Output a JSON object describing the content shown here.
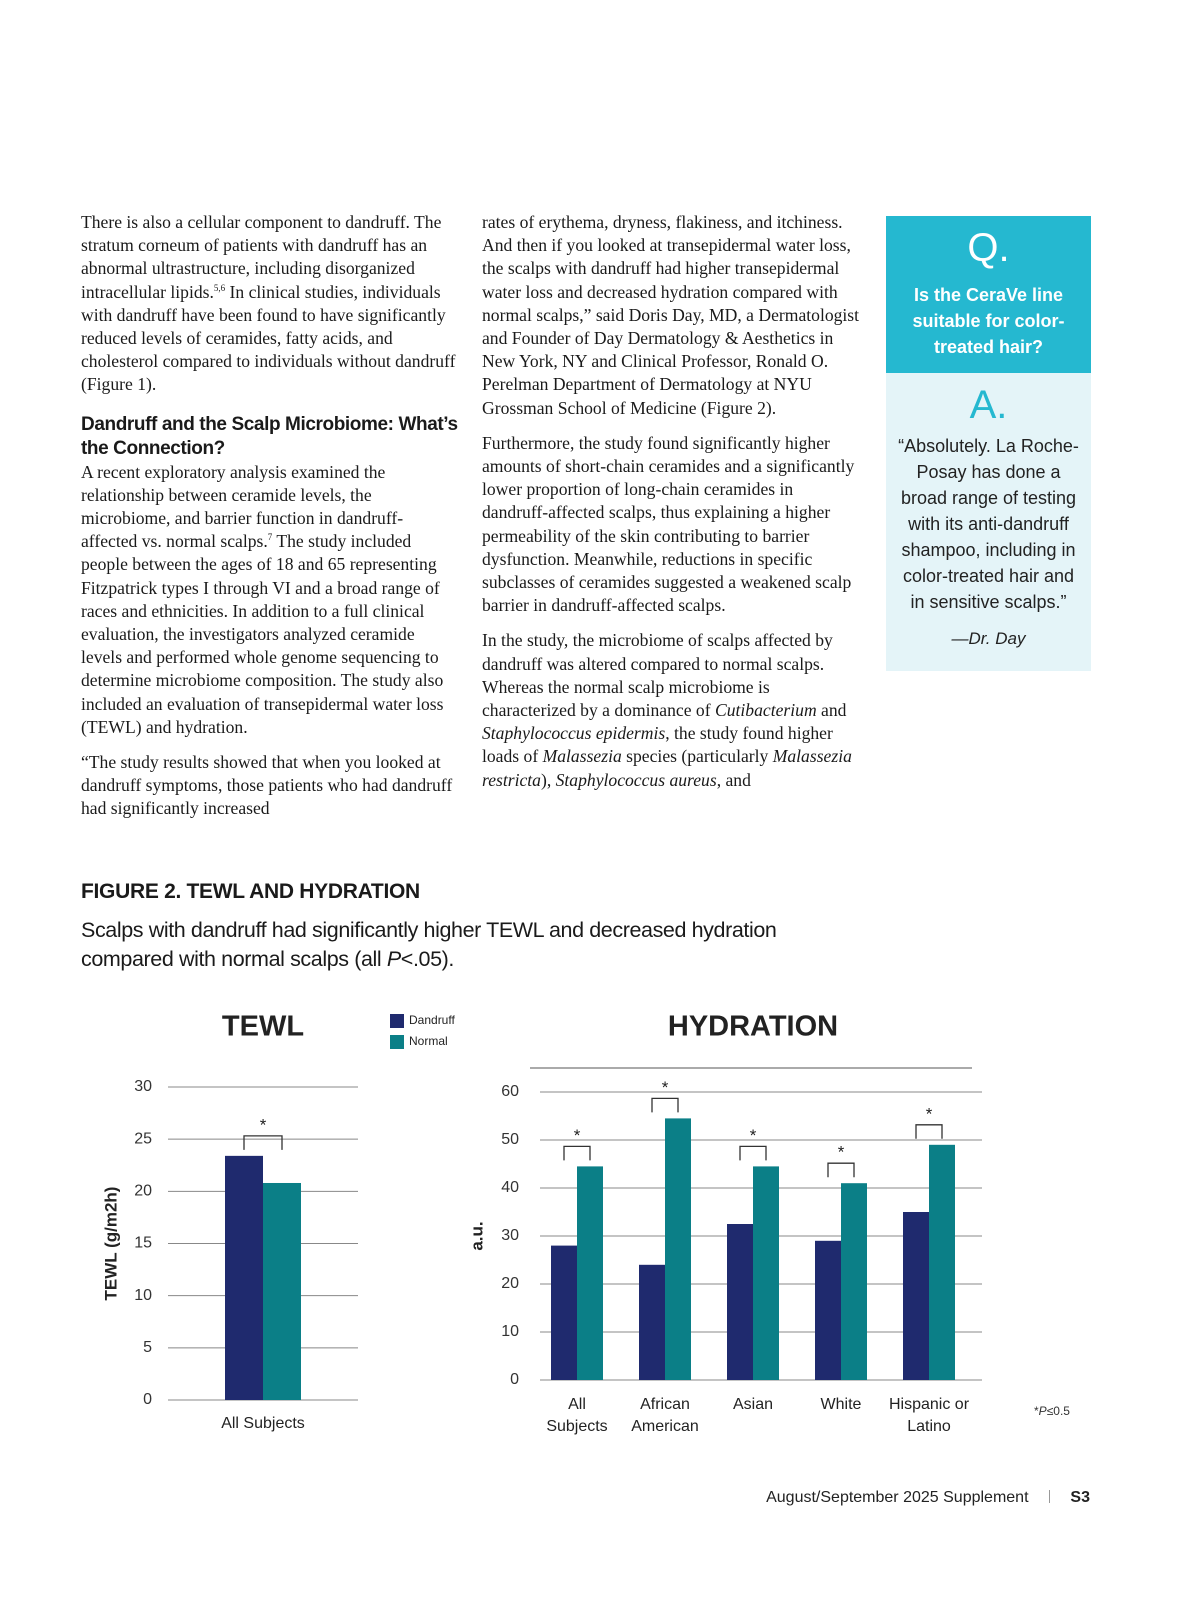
{
  "article": {
    "column1": {
      "p1": [
        "There is also a cellular component to dandruff. The stratum corneum of patients with dandruff has an abnormal ultrastructure, including disorganized intracellular lipids.",
        "5,6",
        " In clinical studies, individuals with dandruff have been found to have significantly reduced levels of ceramides, fatty acids, and cholesterol compared to individuals without dandruff (Figure 1)."
      ],
      "heading": "Dandruff and the Scalp Microbiome: What’s the Connection?",
      "p2": [
        "A recent exploratory analysis examined the relationship between ceramide levels, the microbiome, and barrier function in dandruff-affected vs. normal scalps.",
        "7",
        " The study included people between the ages of 18 and 65 representing Fitzpatrick types I through VI and a broad range of races and ethnicities. In addition to a full clinical evaluation, the investigators analyzed ceramide levels and performed whole genome sequencing to determine microbiome composition. The study also included an evaluation of transepidermal water loss (TEWL) and hydration."
      ],
      "p3": "“The study results showed that when you looked at dandruff symptoms, those patients who had dandruff had significantly increased"
    },
    "column2": {
      "p1": "rates of erythema, dryness, flakiness, and itchiness. And then if you looked at transepidermal water loss, the scalps with dandruff had higher transepidermal water loss and decreased hydration compared with normal scalps,” said Doris Day, MD, a Dermatologist and Founder of Day Dermatology & Aesthetics in New York, NY and Clinical Professor, Ronald O. Perelman Department of Dermatology at NYU Grossman School of Medicine (Figure 2).",
      "p2": "Furthermore, the study found significantly higher amounts of short-chain ceramides and a significantly lower proportion of long-chain ceramides in dandruff-affected scalps, thus explaining a higher permeability of the skin contributing to barrier dysfunction. Meanwhile, reductions in specific subclasses of ceramides suggested a weakened scalp barrier in dandruff-affected scalps.",
      "p3": [
        "In the study, the microbiome of scalps affected by dandruff was altered compared to normal scalps. Whereas the normal scalp microbiome is characterized by a dominance of ",
        "Cutibacterium",
        " and ",
        "Staphylococcus epidermis",
        ", the study found higher loads of ",
        "Malassezia",
        " species (particularly ",
        "Malassezia restricta",
        "), ",
        "Staphylococcus aureus",
        ", and"
      ]
    }
  },
  "sidebar": {
    "q_mark": "Q.",
    "question": "Is the CeraVe line suitable for color-treated hair?",
    "a_mark": "A.",
    "answer": "“Absolutely. La Roche-Posay has done a broad range of testing with its anti-dandruff shampoo, including in color-treated hair and in sensitive scalps.”",
    "attribution": "—Dr. Day"
  },
  "figure": {
    "title": "FIGURE 2. TEWL AND HYDRATION",
    "caption": [
      "Scalps with dandruff had significantly higher TEWL and decreased hydration compared with normal scalps (all ",
      "P",
      "<.05)."
    ],
    "footnote": [
      "*",
      "P",
      "≤0.5"
    ]
  },
  "chart_data": [
    {
      "type": "bar",
      "title": "TEWL",
      "y_label": "TEWL (g/m2h)",
      "categories": [
        "All Subjects"
      ],
      "series": [
        {
          "name": "Dandruff",
          "color": "#1f2a6e",
          "values": [
            23.4
          ]
        },
        {
          "name": "Normal",
          "color": "#0b7f87",
          "values": [
            20.8
          ]
        }
      ],
      "annotations": [
        "*"
      ],
      "ylim": [
        0,
        30
      ],
      "yticks": [
        0,
        5,
        10,
        15,
        20,
        25,
        30
      ],
      "grid": true,
      "legend": "right"
    },
    {
      "type": "bar",
      "title": "HYDRATION",
      "y_label": "a.u.",
      "categories": [
        "All Subjects",
        "African American",
        "Asian",
        "White",
        "Hispanic or Latino"
      ],
      "series": [
        {
          "name": "Dandruff",
          "color": "#1f2a6e",
          "values": [
            28,
            24,
            32.5,
            29,
            35
          ]
        },
        {
          "name": "Normal",
          "color": "#0b7f87",
          "values": [
            44.5,
            54.5,
            44.5,
            41,
            49
          ]
        }
      ],
      "annotations": [
        "*",
        "*",
        "*",
        "*",
        "*"
      ],
      "ylim": [
        0,
        60
      ],
      "yticks": [
        0,
        10,
        20,
        30,
        40,
        50,
        60
      ],
      "grid": true
    }
  ],
  "footer": {
    "publication": "August/September 2025 Supplement",
    "page": "S3"
  }
}
